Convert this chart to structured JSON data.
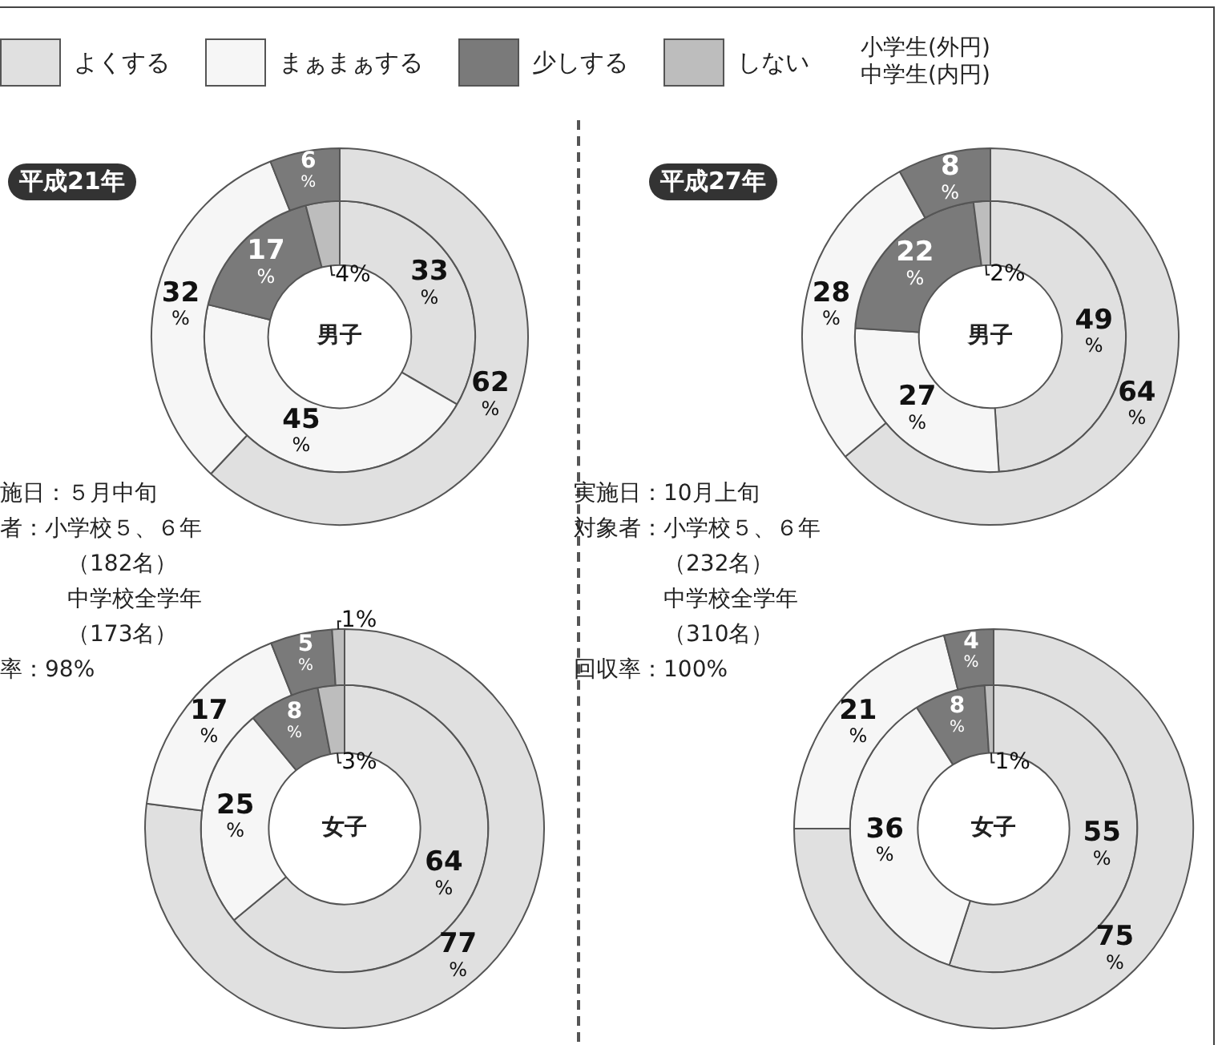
{
  "chart_data": [
    {
      "type": "donut",
      "title": "男子",
      "legend": "top",
      "categories": [
        "よくする",
        "まぁまぁする",
        "少しする",
        "しない"
      ],
      "colors": [
        "#e0e0e0",
        "#f6f6f6",
        "#7a7a7a",
        "#bdbdbd"
      ],
      "series": [
        {
          "name": "小学生(外円)",
          "values": [
            62,
            32,
            6,
            0
          ],
          "value_labels": [
            "62%",
            "32%",
            "6%",
            null
          ]
        },
        {
          "name": "中学生(内円)",
          "values": [
            33,
            45,
            17,
            4
          ],
          "value_labels": [
            "33%",
            "45%",
            "17%",
            "4%"
          ]
        }
      ],
      "annotations": [
        "平成21年",
        "施日：５月中旬",
        "者：小学校５、６年",
        "（182名）",
        "中学校全学年",
        "（173名）",
        "率：98%"
      ]
    },
    {
      "type": "donut",
      "title": "男子",
      "categories": [
        null,
        null,
        null,
        null
      ],
      "colors": [
        "#e0e0e0",
        "#f6f6f6",
        "#7a7a7a",
        "#bdbdbd"
      ],
      "series": [
        {
          "values": [
            64,
            28,
            8,
            0
          ],
          "value_labels": [
            "64%",
            "28%",
            "8%",
            null
          ]
        },
        {
          "values": [
            49,
            27,
            22,
            2
          ],
          "value_labels": [
            "49%",
            "27%",
            "22%",
            "2%"
          ]
        }
      ],
      "annotations": [
        "平成27年",
        "実施日：10月上旬",
        "対象者：小学校５、６年",
        "（232名）",
        "中学校全学年",
        "（310名）",
        "回収率：100%"
      ]
    },
    {
      "type": "donut",
      "title": "女子",
      "categories": [
        null,
        null,
        null,
        null
      ],
      "colors": [
        "#e0e0e0",
        "#f6f6f6",
        "#7a7a7a",
        "#bdbdbd"
      ],
      "series": [
        {
          "values": [
            77,
            17,
            5,
            1
          ],
          "value_labels": [
            "77%",
            "17%",
            "5%",
            "1%"
          ]
        },
        {
          "values": [
            64,
            25,
            8,
            3
          ],
          "value_labels": [
            "64%",
            "25%",
            "8%",
            "3%"
          ]
        }
      ]
    },
    {
      "type": "donut",
      "title": "女子",
      "categories": [
        null,
        null,
        null,
        null
      ],
      "colors": [
        "#e0e0e0",
        "#f6f6f6",
        "#7a7a7a",
        "#bdbdbd"
      ],
      "series": [
        {
          "values": [
            75,
            21,
            4,
            0
          ],
          "value_labels": [
            "75%",
            "21%",
            "4%",
            null
          ]
        },
        {
          "values": [
            55,
            36,
            8,
            1
          ],
          "value_labels": [
            "55%",
            "36%",
            "8%",
            "1%"
          ]
        }
      ]
    }
  ]
}
